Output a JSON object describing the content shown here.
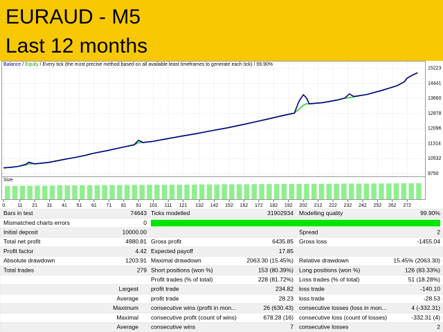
{
  "header": {
    "title": "EURAUD - M5",
    "subtitle": "Last 12 months"
  },
  "chart_data": {
    "type": "line",
    "legend": {
      "balance": "Balance",
      "sep1": " / ",
      "equity": "Equity",
      "note": " / Every tick (the most precise method based on all available least timeframes to generate each tick) / 99.90%"
    },
    "x": [
      0,
      5,
      10,
      15,
      17,
      19,
      21,
      30,
      40,
      50,
      55,
      60,
      70,
      80,
      88,
      91,
      94,
      100,
      110,
      120,
      130,
      140,
      150,
      160,
      170,
      180,
      190,
      196,
      199,
      202,
      204,
      206,
      215,
      225,
      230,
      233,
      236,
      245,
      255,
      265,
      270,
      272,
      275,
      279
    ],
    "series": [
      {
        "name": "Balance",
        "color": "#00008b",
        "values": [
          10050,
          10080,
          10130,
          10230,
          10350,
          10300,
          10260,
          10330,
          10480,
          10620,
          10700,
          10800,
          10950,
          11120,
          11250,
          11480,
          11370,
          11420,
          11560,
          11700,
          11830,
          11980,
          12120,
          12280,
          12450,
          12620,
          12800,
          12900,
          13500,
          13850,
          13700,
          13380,
          13440,
          13580,
          13680,
          13900,
          13760,
          13870,
          14080,
          14320,
          14520,
          14720,
          14850,
          15000
        ]
      },
      {
        "name": "Equity",
        "color": "#2ecc2e",
        "values": [
          10050,
          10080,
          10130,
          10200,
          10260,
          10270,
          10260,
          10330,
          10480,
          10620,
          10700,
          10800,
          10950,
          11120,
          11250,
          11360,
          11370,
          11420,
          11560,
          11700,
          11830,
          11980,
          12120,
          12280,
          12450,
          12620,
          12800,
          12900,
          13100,
          13300,
          13380,
          13380,
          13440,
          13580,
          13680,
          13700,
          13740,
          13870,
          14080,
          14320,
          14520,
          14720,
          14850,
          15000
        ]
      }
    ],
    "xlim": [
      -1,
      284
    ],
    "ylim": [
      9608,
      15578
    ],
    "yticks": [
      9750,
      10532,
      11314,
      12096,
      12878,
      13660,
      14441,
      15223
    ],
    "xticks": [
      0,
      11,
      21,
      31,
      41,
      51,
      61,
      71,
      81,
      91,
      101,
      111,
      121,
      132,
      142,
      152,
      162,
      172,
      182,
      192,
      202,
      212,
      222,
      232,
      242,
      252,
      262,
      272
    ],
    "grid": true,
    "size_panel": {
      "label": "Size",
      "color": "#90ee90",
      "ylim": [
        0,
        1.25
      ],
      "values": [
        0.8,
        0.8,
        0.81,
        0.81,
        0.82,
        0.82,
        0.82,
        0.83,
        0.83,
        0.83,
        0.84,
        0.84,
        0.84,
        0.85,
        0.85,
        0.85,
        0.86,
        0.86,
        0.86,
        0.87,
        0.87,
        0.87,
        0.88,
        0.88,
        0.88,
        0.88,
        0.89,
        0.89,
        0.89,
        0.9,
        0.9,
        0.9,
        0.9,
        0.91,
        0.91,
        0.91,
        0.91,
        0.92,
        0.92,
        0.92,
        0.92,
        0.93,
        0.93,
        0.93,
        0.93,
        0.94,
        0.94,
        0.94,
        0.94,
        0.95,
        0.95,
        0.95,
        0.96,
        0.96,
        0.96,
        0.97
      ]
    }
  },
  "table": {
    "rows": [
      {
        "label": "Bars in test",
        "value": "74643",
        "label2": "Ticks modelled",
        "value2": "31902934",
        "label3": "Modelling quality",
        "value3": "99.90%"
      },
      {
        "label": "Mismatched charts errors",
        "value": "0"
      },
      {
        "label": "Initial deposit",
        "value": "10000.00",
        "label3": "Spread",
        "value3": "2"
      },
      {
        "label": "Total net profit",
        "value": "4980.81",
        "label2": "Gross profit",
        "value2": "6435.85",
        "label3": "Gross loss",
        "value3": "-1455.04"
      },
      {
        "label": "Profit factor",
        "value": "4.42",
        "label2": "Expected payoff",
        "value2": "17.85"
      },
      {
        "label": "Absolute drawdown",
        "value": "1203.91",
        "label2": "Maximal drawdown",
        "value2": "2063.30 (15.45%)",
        "label3": "Relative drawdown",
        "value3": "15.45% (2063.30)"
      },
      {
        "label": "Total trades",
        "value": "279",
        "label2": "Short positions (won %)",
        "value2": "153 (80.39%)",
        "label3": "Long positions (won %)",
        "value3": "126 (83.33%)"
      },
      {
        "label2": "Profit trades (% of total)",
        "value2": "228 (81.72%)",
        "label3": "Loss trades (% of total)",
        "value3": "51 (18.28%)"
      },
      {
        "label": "Largest",
        "label2": "profit trade",
        "value2": "234.82",
        "label3": "loss trade",
        "value3": "-140.10"
      },
      {
        "label": "Average",
        "label2": "profit trade",
        "value2": "28.23",
        "label3": "loss trade",
        "value3": "-28.53"
      },
      {
        "label": "Maximum",
        "label2": "consecutive wins (profit in mon...",
        "value2": "26 (630.43)",
        "label3": "consecutive losses (loss in mon...",
        "value3": "4 (-332.31)"
      },
      {
        "label": "Maximal",
        "label2": "consecutive profit (count of wins)",
        "value2": "678.28 (16)",
        "label3": "consecutive loss (count of losses)",
        "value3": "-332.31 (4)"
      },
      {
        "label": "Average",
        "label2": "consecutive wins",
        "value2": "7",
        "label3": "consecutive losses",
        "value3": "2"
      }
    ]
  }
}
